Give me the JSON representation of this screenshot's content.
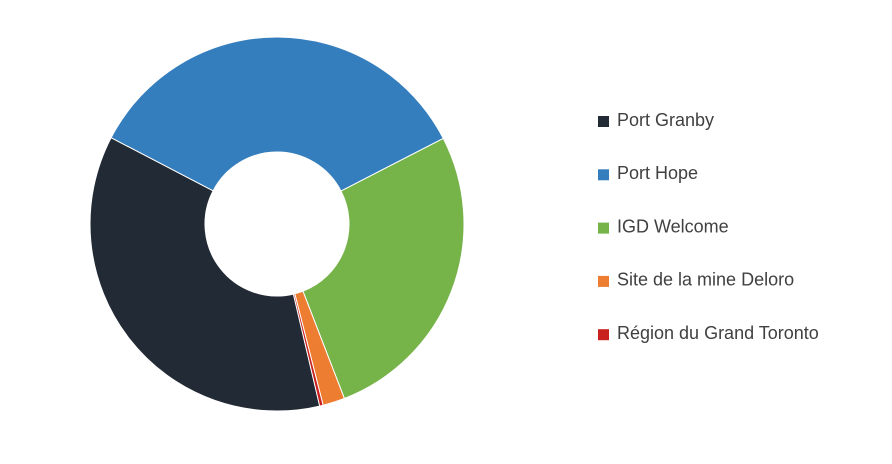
{
  "chart_data": {
    "type": "donut",
    "categories": [
      "Port Granby",
      "Port Hope",
      "IGD Welcome",
      "Site de la mine Deloro",
      "Région du Grand Toronto"
    ],
    "values": [
      36.3,
      34.8,
      26.7,
      1.9,
      0.3
    ],
    "colors": [
      "#222a35",
      "#357ebd",
      "#76b44a",
      "#ed7d31",
      "#c9211e"
    ],
    "legend": "right"
  }
}
